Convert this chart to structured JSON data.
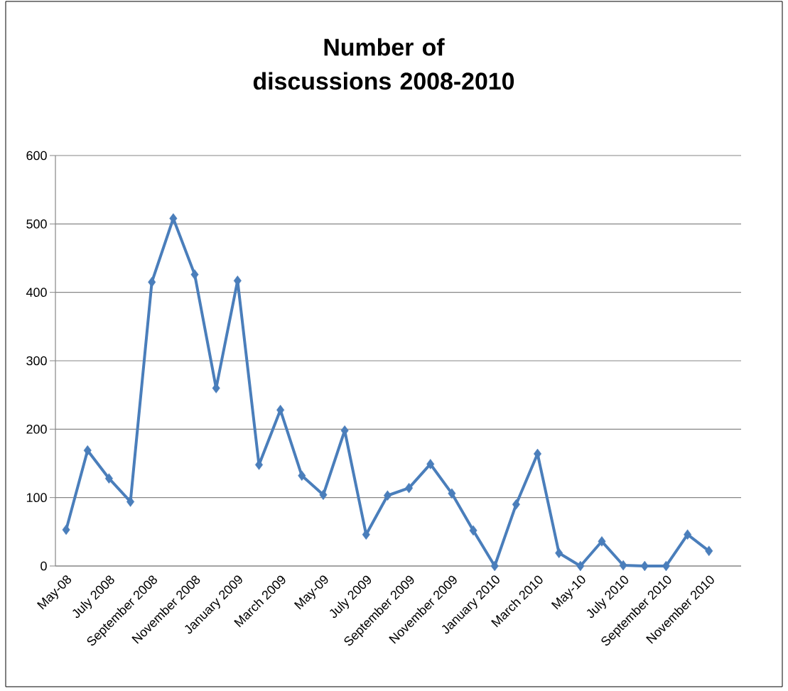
{
  "chart_data": {
    "type": "line",
    "title": "Number of discussions 2008-2010",
    "categories": [
      "May-08",
      null,
      "July 2008",
      null,
      "September 2008",
      null,
      "November 2008",
      null,
      "January 2009",
      null,
      "March 2009",
      null,
      "May-09",
      null,
      "July 2009",
      null,
      "September 2009",
      null,
      "November 2009",
      null,
      "January 2010",
      null,
      "March 2010",
      null,
      "May-10",
      null,
      "July 2010",
      null,
      "September 2010",
      null,
      "November 2010",
      null
    ],
    "values": [
      53,
      169,
      128,
      94,
      415,
      508,
      426,
      260,
      417,
      148,
      228,
      132,
      104,
      198,
      46,
      103,
      114,
      149,
      106,
      52,
      0,
      90,
      164,
      19,
      0,
      36,
      1,
      0,
      0,
      46,
      22,
      null
    ],
    "color": "#4a7ebb",
    "marker": "diamond",
    "ylim": [
      0,
      600
    ],
    "yticks": [
      0,
      100,
      200,
      300,
      400,
      500,
      600
    ],
    "grid": "y"
  }
}
